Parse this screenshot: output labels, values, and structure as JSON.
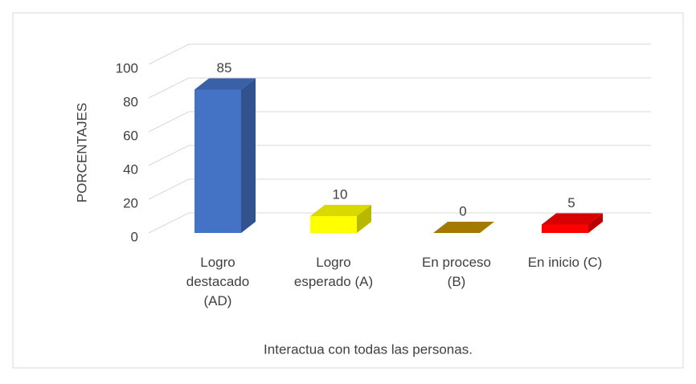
{
  "chart_data": {
    "type": "bar3d",
    "x_label": "Interactua con todas las personas.",
    "y_label": "PORCENTAJES",
    "categories": [
      "Logro destacado (AD)",
      "Logro esperado (A)",
      "En proceso (B)",
      "En inicio (C)"
    ],
    "values": [
      85,
      10,
      0,
      5
    ],
    "colors": [
      "#4472c4",
      "#ffff00",
      "#bf9000",
      "#ff0000"
    ],
    "ylim": [
      0,
      100
    ],
    "yticks": [
      0,
      20,
      40,
      60,
      80,
      100
    ],
    "grid": true
  }
}
